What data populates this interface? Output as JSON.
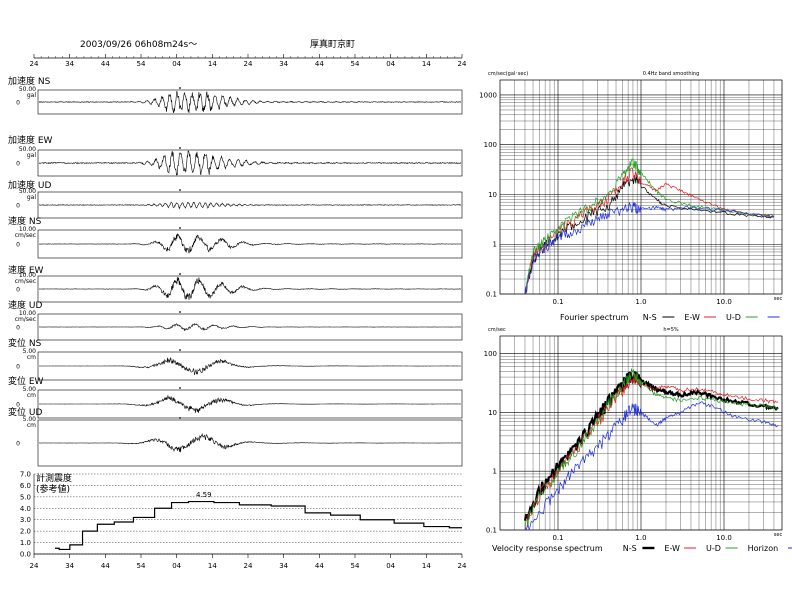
{
  "header": {
    "datetime": "2003/09/26  06h08m24s～",
    "station": "厚真町京町",
    "time_ticks": [
      "24",
      "34",
      "44",
      "54",
      "04",
      "14",
      "24",
      "34",
      "44",
      "54",
      "04",
      "14",
      "24"
    ]
  },
  "waveforms": [
    {
      "label": "加速度 NS",
      "scale_top": "50.00",
      "unit": "gal",
      "zero": "0",
      "amp": 1.0,
      "period": 1.2,
      "noise": 0.06
    },
    {
      "label": "加速度 EW",
      "scale_top": "50.00",
      "unit": "gal",
      "zero": "0",
      "amp": 1.0,
      "period": 1.3,
      "noise": 0.08
    },
    {
      "label": "加速度 UD",
      "scale_top": "50.00",
      "unit": "gal",
      "zero": "0",
      "amp": 0.25,
      "period": 0.9,
      "noise": 0.05
    },
    {
      "label": "速度 NS",
      "scale_top": "10.00",
      "unit": "cm/sec",
      "zero": "0",
      "amp": 0.7,
      "period": 3.5,
      "noise": 0.03
    },
    {
      "label": "速度 EW",
      "scale_top": "10.00",
      "unit": "cm/sec",
      "zero": "0",
      "amp": 0.9,
      "period": 3.5,
      "noise": 0.03
    },
    {
      "label": "速度 UD",
      "scale_top": "10.00",
      "unit": "cm/sec",
      "zero": "0",
      "amp": 0.25,
      "period": 3.0,
      "noise": 0.02
    },
    {
      "label": "変位 NS",
      "scale_top": "5.00",
      "unit": "cm",
      "zero": "0",
      "amp": 0.55,
      "period": 9.0,
      "noise": 0.01
    },
    {
      "label": "変位 EW",
      "scale_top": "5.00",
      "unit": "cm",
      "zero": "0",
      "amp": 0.55,
      "period": 9.0,
      "noise": 0.01
    },
    {
      "label": "変位 UD",
      "scale_top": "5.00",
      "unit": "cm",
      "zero": "0",
      "amp": 0.35,
      "period": 8.0,
      "noise": 0.01
    }
  ],
  "intensity": {
    "label_line1": "計測震度",
    "label_line2": "(参考値)",
    "peak_label": "4.59",
    "y_ticks": [
      "0.0",
      "1.0",
      "2.0",
      "3.0",
      "4.0",
      "5.0",
      "6.0",
      "7.0"
    ],
    "x_ticks": [
      "24",
      "34",
      "44",
      "54",
      "04",
      "14",
      "24",
      "34",
      "44",
      "54",
      "04",
      "14",
      "24"
    ]
  },
  "chart_data": [
    {
      "type": "line",
      "title": "0.4Hz band smoothing",
      "ylabel": "cm/sec(gal･sec)",
      "xlabel": "sec",
      "y_tick_labels": [
        "0.1",
        "1",
        "10",
        "100",
        "1000"
      ],
      "x_tick_labels": [
        "0.1",
        "1.0",
        "10.0"
      ],
      "log_x": true,
      "log_y": true,
      "xlim": [
        0.02,
        50
      ],
      "ylim": [
        0.1,
        2000
      ],
      "legend_title": "Fourier spectrum",
      "legend": [
        "N-S",
        "E-W",
        "U-D",
        ""
      ],
      "series": [
        {
          "name": "N-S",
          "color": "#000000",
          "points": [
            [
              0.04,
              0.1
            ],
            [
              0.05,
              0.5
            ],
            [
              0.07,
              1
            ],
            [
              0.1,
              1.5
            ],
            [
              0.15,
              2.5
            ],
            [
              0.25,
              4
            ],
            [
              0.4,
              6
            ],
            [
              0.6,
              15
            ],
            [
              0.8,
              22
            ],
            [
              1.0,
              15
            ],
            [
              1.5,
              8
            ],
            [
              2,
              6
            ],
            [
              4,
              5
            ],
            [
              8,
              4.5
            ],
            [
              20,
              3.8
            ],
            [
              40,
              3.5
            ]
          ]
        },
        {
          "name": "E-W",
          "color": "#e02020",
          "points": [
            [
              0.04,
              0.1
            ],
            [
              0.05,
              0.6
            ],
            [
              0.07,
              1
            ],
            [
              0.1,
              1.8
            ],
            [
              0.15,
              3
            ],
            [
              0.25,
              5
            ],
            [
              0.4,
              8
            ],
            [
              0.6,
              18
            ],
            [
              0.8,
              30
            ],
            [
              1.0,
              18
            ],
            [
              1.5,
              12
            ],
            [
              2,
              16
            ],
            [
              3,
              12
            ],
            [
              5,
              8
            ],
            [
              10,
              5
            ],
            [
              20,
              4
            ],
            [
              40,
              3.6
            ]
          ]
        },
        {
          "name": "U-D",
          "color": "#20a020",
          "points": [
            [
              0.04,
              0.1
            ],
            [
              0.05,
              0.7
            ],
            [
              0.07,
              1.2
            ],
            [
              0.1,
              2
            ],
            [
              0.15,
              3.5
            ],
            [
              0.25,
              6
            ],
            [
              0.4,
              10
            ],
            [
              0.6,
              25
            ],
            [
              0.8,
              45
            ],
            [
              1.0,
              28
            ],
            [
              1.5,
              12
            ],
            [
              2,
              8
            ],
            [
              4,
              6
            ],
            [
              8,
              5
            ],
            [
              20,
              4
            ],
            [
              40,
              3.8
            ]
          ]
        },
        {
          "name": "",
          "color": "#2030e0",
          "points": [
            [
              0.04,
              0.1
            ],
            [
              0.05,
              0.5
            ],
            [
              0.07,
              0.9
            ],
            [
              0.1,
              1.3
            ],
            [
              0.15,
              1.8
            ],
            [
              0.25,
              2.8
            ],
            [
              0.4,
              4
            ],
            [
              0.6,
              5
            ],
            [
              0.8,
              6
            ],
            [
              1.0,
              5
            ],
            [
              1.5,
              5.5
            ],
            [
              2,
              5
            ],
            [
              4,
              5.5
            ],
            [
              8,
              5
            ],
            [
              20,
              4
            ],
            [
              40,
              3.6
            ]
          ]
        }
      ]
    },
    {
      "type": "line",
      "title": "h=5%",
      "ylabel": "cm/sec",
      "xlabel": "sec",
      "y_tick_labels": [
        "0.1",
        "1",
        "10",
        "100"
      ],
      "x_tick_labels": [
        "0.1",
        "1.0",
        "10.0"
      ],
      "log_x": true,
      "log_y": true,
      "xlim": [
        0.02,
        50
      ],
      "ylim": [
        0.1,
        200
      ],
      "legend_title": "Velocity response spectrum",
      "legend": [
        "N-S",
        "E-W",
        "U-D",
        "Horizon"
      ],
      "series": [
        {
          "name": "N-S",
          "color": "#000000",
          "points": [
            [
              0.04,
              0.15
            ],
            [
              0.06,
              0.5
            ],
            [
              0.1,
              1.2
            ],
            [
              0.15,
              2.5
            ],
            [
              0.25,
              6
            ],
            [
              0.4,
              15
            ],
            [
              0.6,
              30
            ],
            [
              0.8,
              45
            ],
            [
              1.0,
              35
            ],
            [
              1.5,
              25
            ],
            [
              2,
              22
            ],
            [
              3,
              20
            ],
            [
              5,
              22
            ],
            [
              8,
              18
            ],
            [
              15,
              15
            ],
            [
              30,
              13
            ],
            [
              45,
              12
            ]
          ]
        },
        {
          "name": "E-W",
          "color": "#e02020",
          "points": [
            [
              0.04,
              0.12
            ],
            [
              0.06,
              0.4
            ],
            [
              0.1,
              1
            ],
            [
              0.15,
              2
            ],
            [
              0.25,
              5
            ],
            [
              0.4,
              12
            ],
            [
              0.6,
              25
            ],
            [
              0.8,
              40
            ],
            [
              1.0,
              30
            ],
            [
              1.5,
              25
            ],
            [
              2,
              28
            ],
            [
              3,
              24
            ],
            [
              5,
              25
            ],
            [
              8,
              22
            ],
            [
              15,
              18
            ],
            [
              30,
              16
            ],
            [
              45,
              15
            ]
          ]
        },
        {
          "name": "U-D",
          "color": "#20a020",
          "points": [
            [
              0.04,
              0.12
            ],
            [
              0.06,
              0.4
            ],
            [
              0.1,
              1
            ],
            [
              0.15,
              2
            ],
            [
              0.25,
              5
            ],
            [
              0.4,
              14
            ],
            [
              0.6,
              30
            ],
            [
              0.8,
              50
            ],
            [
              1.0,
              35
            ],
            [
              1.5,
              20
            ],
            [
              2,
              18
            ],
            [
              3,
              16
            ],
            [
              5,
              18
            ],
            [
              8,
              16
            ],
            [
              15,
              14
            ],
            [
              30,
              13
            ],
            [
              45,
              12
            ]
          ]
        },
        {
          "name": "Horizon",
          "color": "#2030e0",
          "points": [
            [
              0.04,
              0.08
            ],
            [
              0.06,
              0.2
            ],
            [
              0.1,
              0.5
            ],
            [
              0.15,
              1
            ],
            [
              0.25,
              2
            ],
            [
              0.4,
              4
            ],
            [
              0.6,
              8
            ],
            [
              0.8,
              12
            ],
            [
              1.0,
              10
            ],
            [
              1.5,
              6
            ],
            [
              2,
              8
            ],
            [
              3,
              10
            ],
            [
              5,
              15
            ],
            [
              8,
              12
            ],
            [
              15,
              8
            ],
            [
              30,
              7
            ],
            [
              45,
              6
            ]
          ]
        }
      ]
    }
  ]
}
